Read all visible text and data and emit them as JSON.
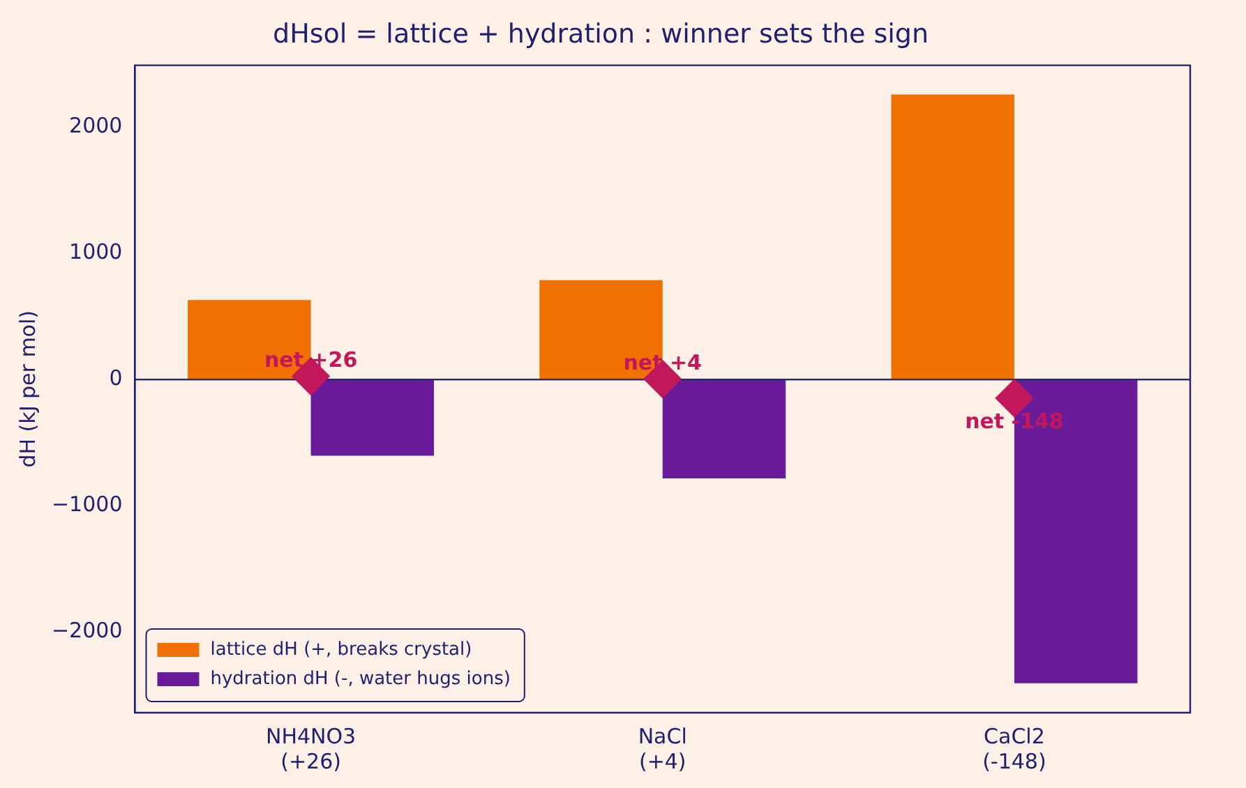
{
  "chart_data": {
    "type": "bar",
    "title": "dHsol = lattice + hydration : winner sets the sign",
    "ylabel": "dH (kJ per mol)",
    "categories": [
      "NH4NO3\n(+26)",
      "NaCl\n(+4)",
      "CaCl2\n(-148)"
    ],
    "series": [
      {
        "name": "lattice dH (+, breaks crystal)",
        "color": "#f07000",
        "values": [
          630,
          787,
          2258
        ]
      },
      {
        "name": "hydration dH (-, water hugs ions)",
        "color": "#6a1b9a",
        "values": [
          -604,
          -783,
          -2406
        ]
      },
      {
        "type": "scatter",
        "color": "#c2185b",
        "x": [
          "NH4NO3\n(+26)",
          "NaCl\n(+4)",
          "CaCl2\n(-148)"
        ],
        "values": [
          26,
          4,
          -148
        ]
      }
    ],
    "annotations": [
      {
        "text": "net +26",
        "x": "NH4NO3\n(+26)",
        "y": 26
      },
      {
        "text": "net +4",
        "x": "NaCl\n(+4)",
        "y": 4
      },
      {
        "text": "net -148",
        "x": "CaCl2\n(-148)",
        "y": -148
      }
    ],
    "ref_lines": [
      {
        "axis": "y",
        "value": 0,
        "color": "#2a2a7a"
      }
    ],
    "ylim": [
      -2640,
      2490
    ],
    "yticks": [
      -2000,
      -1000,
      0,
      1000,
      2000
    ],
    "grid": false,
    "legend": "bottom left",
    "marker": "diamond"
  }
}
